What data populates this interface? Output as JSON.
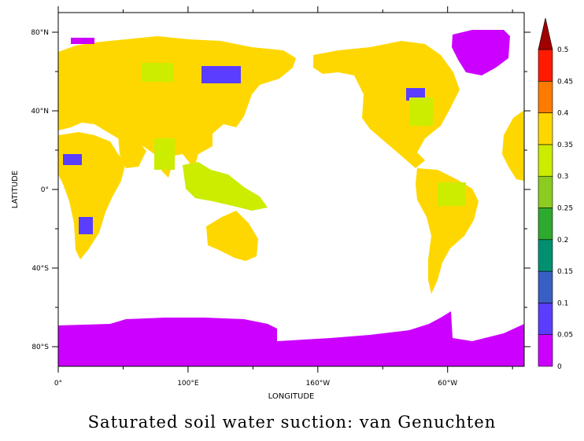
{
  "title": "Saturated soil water suction: van Genuchten",
  "map": {
    "x_axis": {
      "label": "LONGITUDE",
      "ticks": [
        {
          "lon": 0,
          "label": "0°"
        },
        {
          "lon": 100,
          "label": "100°E"
        },
        {
          "lon": 200,
          "label": "160°W"
        },
        {
          "lon": 300,
          "label": "60°W"
        }
      ],
      "minor_ticks": [
        50,
        150,
        250,
        350
      ],
      "range": [
        0,
        359
      ]
    },
    "y_axis": {
      "label": "LATITUDE",
      "ticks": [
        {
          "lat": 80,
          "label": "80°N"
        },
        {
          "lat": 40,
          "label": "40°N"
        },
        {
          "lat": 0,
          "label": "0°"
        },
        {
          "lat": -40,
          "label": "40°S"
        },
        {
          "lat": -80,
          "label": "80°S"
        }
      ],
      "minor_ticks": [
        60,
        20,
        -20,
        -60
      ],
      "range": [
        -90,
        90
      ]
    },
    "ocean_color": "#ffffff",
    "dominant_land_color": "#ffd700"
  },
  "colorbar": {
    "levels": [
      "0",
      "0.05",
      "0.1",
      "0.15",
      "0.2",
      "0.25",
      "0.3",
      "0.35",
      "0.4",
      "0.45",
      "0.5"
    ],
    "colors": [
      "#cc00ff",
      "#5a3dff",
      "#3a5fc4",
      "#009070",
      "#2eaa2e",
      "#8ccc20",
      "#ccec00",
      "#ffd700",
      "#ff7b00",
      "#ff1a00",
      "#a00000"
    ],
    "extend": "max"
  }
}
